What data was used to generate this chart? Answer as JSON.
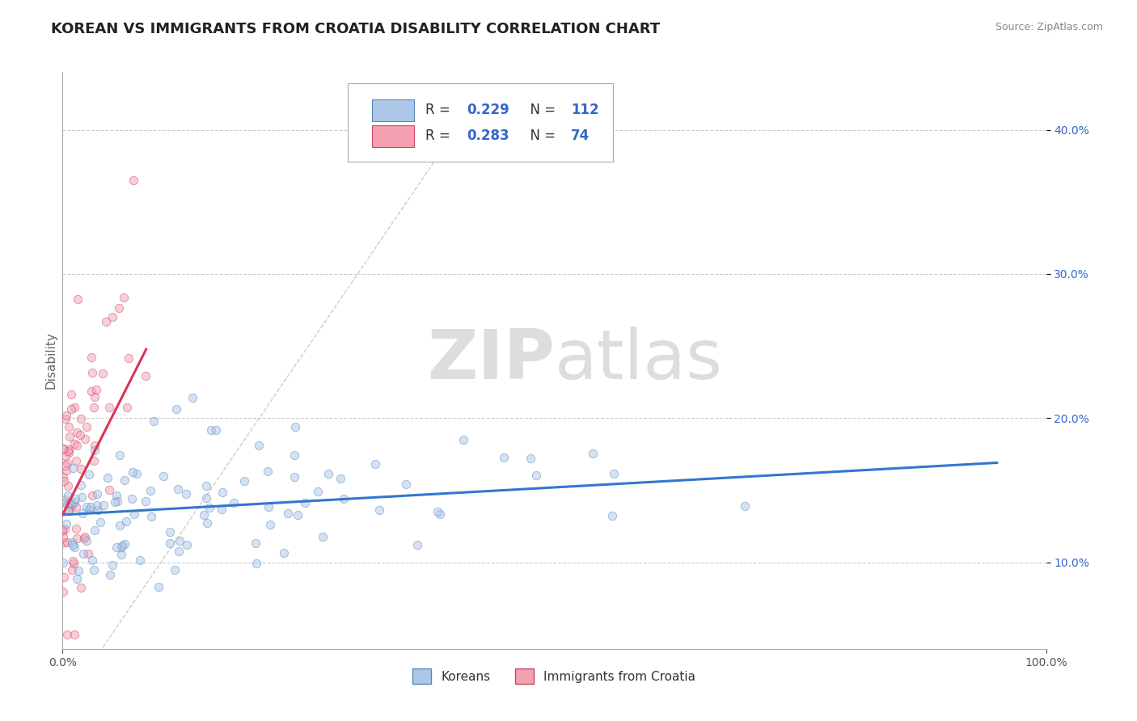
{
  "title": "KOREAN VS IMMIGRANTS FROM CROATIA DISABILITY CORRELATION CHART",
  "source": "Source: ZipAtlas.com",
  "xlabel_labels": [
    "0.0%",
    "100.0%"
  ],
  "ylabel_ticks": [
    0.1,
    0.2,
    0.3,
    0.4
  ],
  "ylabel_labels": [
    "10.0%",
    "20.0%",
    "30.0%",
    "40.0%"
  ],
  "xlim": [
    0.0,
    1.0
  ],
  "ylim": [
    0.04,
    0.44
  ],
  "korean_R": 0.229,
  "korean_N": 112,
  "croatia_R": 0.283,
  "croatia_N": 74,
  "korean_color": "#aec6e8",
  "korean_edge": "#5588bb",
  "korean_line_color": "#3377cc",
  "croatia_color": "#f5a0b0",
  "croatia_edge": "#cc4466",
  "croatia_line_color": "#dd3355",
  "diagonal_color": "#cccccc",
  "watermark_color": "#dddddd",
  "background_color": "#ffffff",
  "grid_color": "#cccccc",
  "legend_color": "#3366cc",
  "title_fontsize": 13,
  "axis_label_fontsize": 11,
  "legend_fontsize": 12,
  "tick_fontsize": 10,
  "scatter_alpha": 0.5,
  "scatter_size": 55,
  "korean_seed": 42,
  "croatia_seed": 99,
  "korea_slope": 0.038,
  "korea_intercept": 0.133,
  "croatia_slope": 1.35,
  "croatia_intercept": 0.133
}
